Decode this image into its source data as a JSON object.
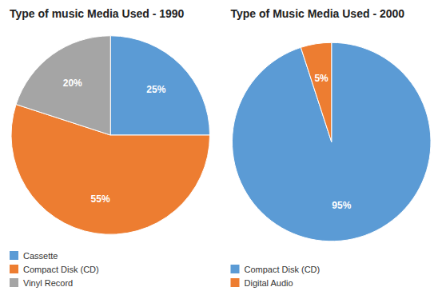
{
  "chart_data": [
    {
      "type": "pie",
      "title": "Type of music Media Used - 1990",
      "categories": [
        "Cassette",
        "Compact Disk (CD)",
        "Vinyl Record"
      ],
      "values": [
        25,
        55,
        20
      ],
      "value_labels": [
        "25%",
        "55%",
        "20%"
      ],
      "colors": [
        "#5B9BD5",
        "#ED7D31",
        "#A5A5A5"
      ],
      "data_labels": true,
      "legend": "bottom"
    },
    {
      "type": "pie",
      "title": "Type of Music Media Used - 2000",
      "categories": [
        "Compact Disk (CD)",
        "Digital Audio"
      ],
      "values": [
        95,
        5
      ],
      "value_labels": [
        "95%",
        "5%"
      ],
      "colors": [
        "#5B9BD5",
        "#ED7D31"
      ],
      "data_labels": true,
      "legend": "bottom"
    }
  ]
}
